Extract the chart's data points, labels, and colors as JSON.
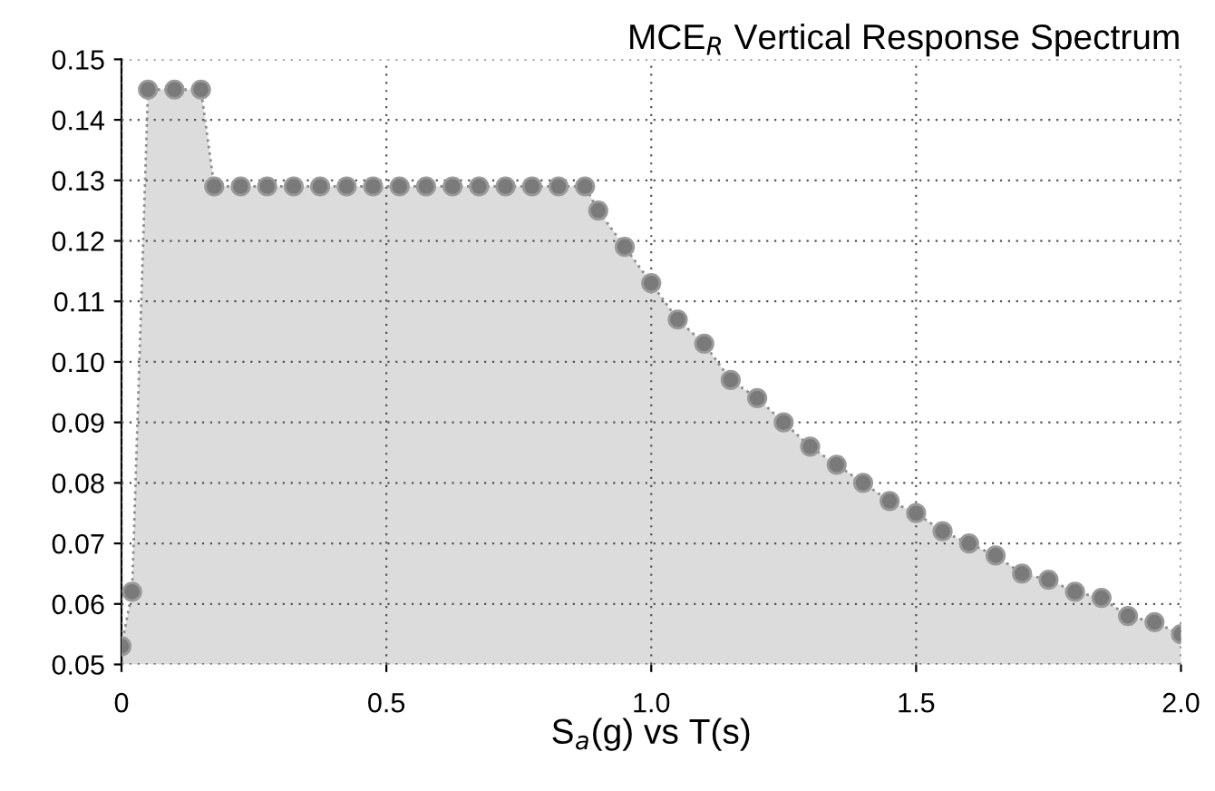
{
  "chart_data": {
    "type": "area",
    "title": "MCE$_{R}$ Vertical Response Spectrum",
    "xlabel": "S$_{a}$(g) vs T(s)",
    "series": [
      {
        "color": "#8c8c8c",
        "x": [
          0,
          0.02,
          0.05,
          0.1,
          0.15,
          0.175,
          0.225,
          0.275,
          0.325,
          0.375,
          0.425,
          0.475,
          0.525,
          0.575,
          0.625,
          0.675,
          0.725,
          0.775,
          0.825,
          0.875,
          0.9,
          0.95,
          1.0,
          1.05,
          1.1,
          1.15,
          1.2,
          1.25,
          1.3,
          1.35,
          1.4,
          1.45,
          1.5,
          1.55,
          1.6,
          1.65,
          1.7,
          1.75,
          1.8,
          1.85,
          1.9,
          1.95,
          2.0
        ],
        "values": [
          0.053,
          0.062,
          0.145,
          0.145,
          0.145,
          0.129,
          0.129,
          0.129,
          0.129,
          0.129,
          0.129,
          0.129,
          0.129,
          0.129,
          0.129,
          0.129,
          0.129,
          0.129,
          0.129,
          0.129,
          0.125,
          0.119,
          0.113,
          0.107,
          0.103,
          0.097,
          0.094,
          0.09,
          0.086,
          0.083,
          0.08,
          0.077,
          0.075,
          0.072,
          0.07,
          0.068,
          0.065,
          0.064,
          0.062,
          0.061,
          0.058,
          0.057,
          0.055
        ]
      }
    ],
    "marker": "circle",
    "grid": true,
    "xlim": [
      0,
      2.0
    ],
    "xticks": [
      0,
      {
        "value": 0.5,
        "label": "0.5"
      },
      {
        "value": 1.0,
        "label": "1.0"
      },
      {
        "value": 1.5,
        "label": "1.5"
      },
      {
        "value": 2.0,
        "label": "2.0"
      }
    ],
    "ylim": [
      0.05,
      0.15
    ],
    "yticks": [
      {
        "value": 0.05,
        "label": "0.05"
      },
      {
        "value": 0.06,
        "label": "0.06"
      },
      {
        "value": 0.07,
        "label": "0.07"
      },
      {
        "value": 0.08,
        "label": "0.08"
      },
      {
        "value": 0.09,
        "label": "0.09"
      },
      {
        "value": 0.1,
        "label": "0.10"
      },
      {
        "value": 0.11,
        "label": "0.11"
      },
      {
        "value": 0.12,
        "label": "0.12"
      },
      {
        "value": 0.13,
        "label": "0.13"
      },
      {
        "value": 0.14,
        "label": "0.14"
      },
      {
        "value": 0.15,
        "label": "0.15"
      }
    ]
  }
}
